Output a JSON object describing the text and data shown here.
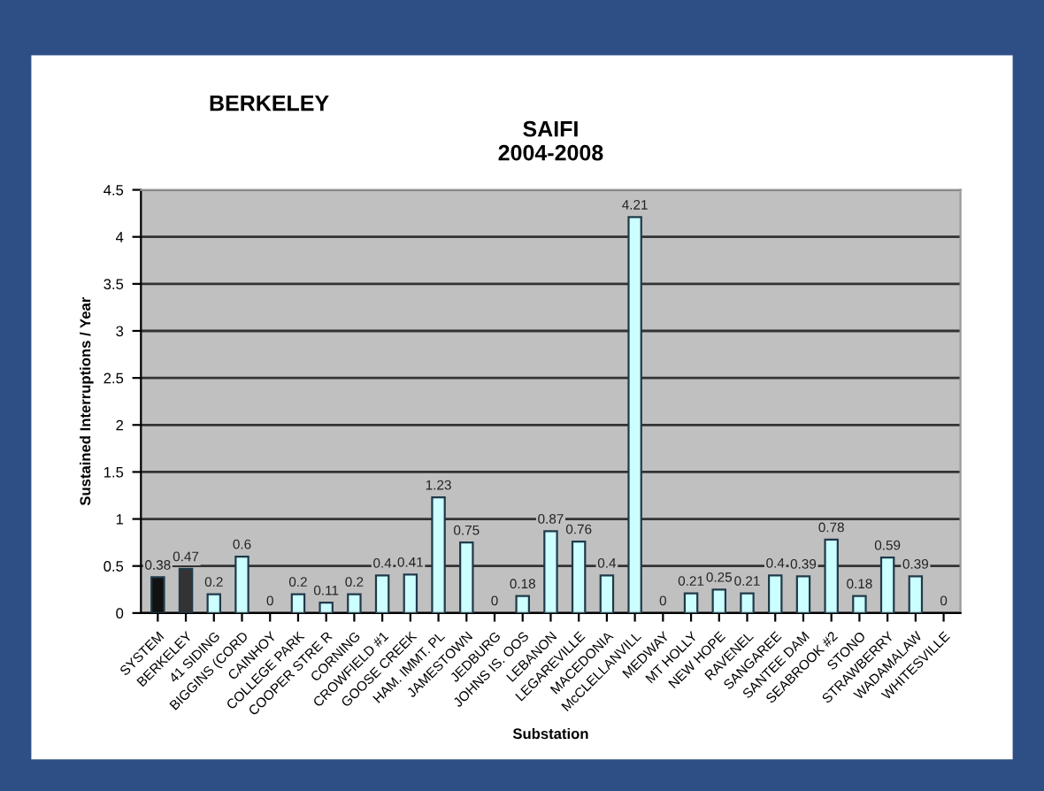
{
  "chart_data": {
    "type": "bar",
    "title": "SAIFI\n2004-2008",
    "annotations": [
      "BERKELEY"
    ],
    "xlabel": "Substation",
    "ylabel": "Sustained Interruptions / Year",
    "categories": [
      "SYSTEM",
      "BERKELEY",
      "41 SIDING",
      "BIGGINS (CORD",
      "CAINHOY",
      "COLLEGE PARK",
      "COOPER STRE R",
      "CORNING",
      "CROWFIELD #1",
      "GOOSE CREEK",
      "HAM. IMMT. PL",
      "JAMESTOWN",
      "JEDBURG",
      "JOHNS IS. OOS",
      "LEBANON",
      "LEGAREVILLE",
      "MACEDONIA",
      "McCLELLANVILL",
      "MEDWAY",
      "MT HOLLY",
      "NEW HOPE",
      "RAVENEL",
      "SANGAREE",
      "SANTEE DAM",
      "SEABROOK #2",
      "STONO",
      "STRAWBERRY",
      "WADAMALAW",
      "WHITESVILLE"
    ],
    "values": [
      0.38,
      0.47,
      0.2,
      0.6,
      0,
      0.2,
      0.11,
      0.2,
      0.4,
      0.41,
      1.23,
      0.75,
      0,
      0.18,
      0.87,
      0.76,
      0.4,
      4.21,
      0,
      0.21,
      0.25,
      0.21,
      0.4,
      0.39,
      0.78,
      0.18,
      0.59,
      0.39,
      0
    ],
    "colors": [
      "#111111",
      "#333333",
      "#ccffff",
      "#ccffff",
      "#ccffff",
      "#ccffff",
      "#ccffff",
      "#ccffff",
      "#ccffff",
      "#ccffff",
      "#ccffff",
      "#ccffff",
      "#ccffff",
      "#ccffff",
      "#ccffff",
      "#ccffff",
      "#ccffff",
      "#ccffff",
      "#ccffff",
      "#ccffff",
      "#ccffff",
      "#ccffff",
      "#ccffff",
      "#ccffff",
      "#ccffff",
      "#ccffff",
      "#ccffff",
      "#ccffff",
      "#ccffff"
    ],
    "data_labels": true,
    "ylim": [
      0,
      4.5
    ],
    "yticks": [
      0,
      0.5,
      1,
      1.5,
      2,
      2.5,
      3,
      3.5,
      4,
      4.5
    ],
    "grid": "y",
    "legend": false
  }
}
